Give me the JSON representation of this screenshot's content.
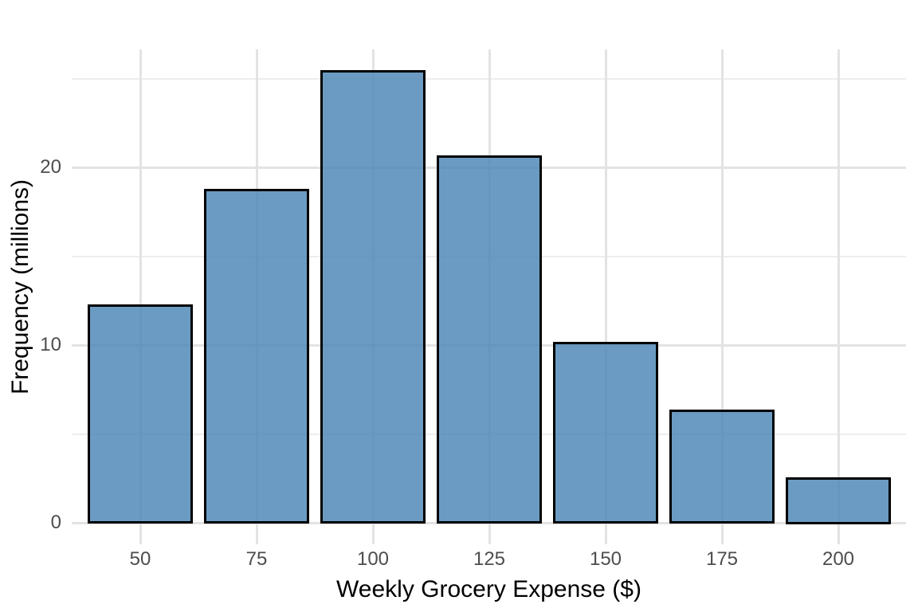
{
  "chart_data": {
    "type": "bar",
    "subtype": "histogram",
    "title": "",
    "xlabel": "Weekly Grocery Expense ($)",
    "ylabel": "Frequency (millions)",
    "categories": [
      50,
      75,
      100,
      125,
      150,
      175,
      200
    ],
    "values": [
      12.2,
      18.7,
      25.4,
      20.6,
      10.1,
      6.3,
      2.5
    ],
    "x_tick_labels": [
      "50",
      "75",
      "100",
      "125",
      "150",
      "175",
      "200"
    ],
    "y_tick_labels": [
      "0",
      "10",
      "20"
    ],
    "y_ticks_major": [
      0,
      10,
      20
    ],
    "y_ticks_minor": [
      5,
      15,
      25
    ],
    "xlim": [
      35,
      215
    ],
    "ylim": [
      0,
      26.6
    ],
    "grid": "horizontal major+minor, vertical major at ticks, no axis lines",
    "legend": "none",
    "colors": {
      "bar_fill": "#6B9BC3",
      "bar_border": "#000000",
      "grid_major": "#E3E3E3",
      "grid_minor": "#EDEDED",
      "tick_label": "#4D4D4D",
      "axis_title": "#000000",
      "background": "#FFFFFF"
    }
  }
}
